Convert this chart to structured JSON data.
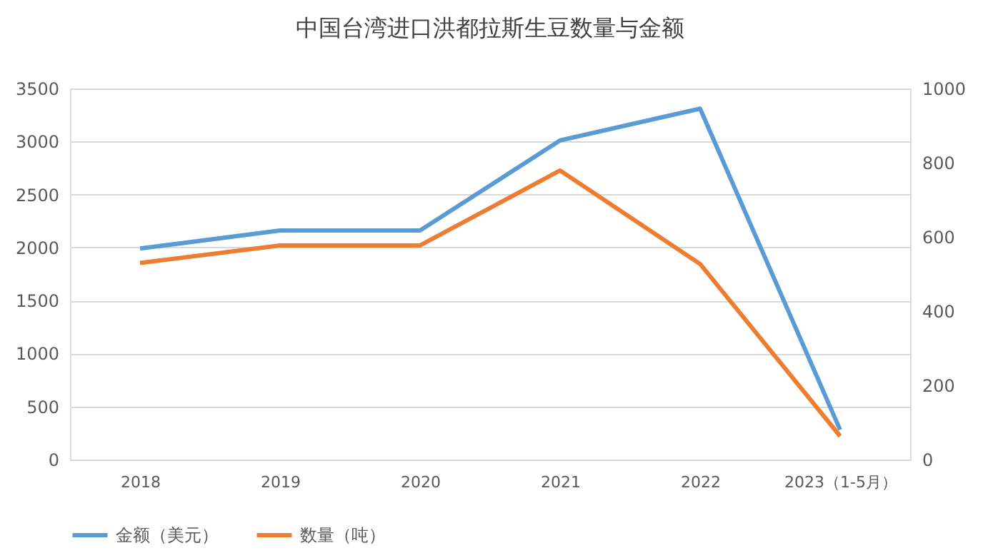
{
  "chart_data": {
    "type": "line",
    "title": "中国台湾进口洪都拉斯生豆数量与金额",
    "categories": [
      "2018",
      "2019",
      "2020",
      "2021",
      "2022",
      "2023（1-5月）"
    ],
    "series": [
      {
        "name": "金额（美元）",
        "color": "#5b9bd5",
        "values": [
          1990,
          2160,
          2160,
          3010,
          3310,
          280
        ]
      },
      {
        "name": "数量（吨）",
        "color": "#ed7d31",
        "axis": "y2",
        "values": [
          530,
          577,
          577,
          779,
          527,
          63
        ]
      }
    ],
    "ylim": [
      0,
      3500
    ],
    "yticks": [
      0,
      500,
      1000,
      1500,
      2000,
      2500,
      3000,
      3500
    ],
    "y2lim": [
      0,
      1000
    ],
    "y2ticks": [
      0,
      200,
      400,
      600,
      800,
      1000
    ],
    "grid": "y",
    "legend": "bottom",
    "marker": "none",
    "line_style": "solid"
  }
}
